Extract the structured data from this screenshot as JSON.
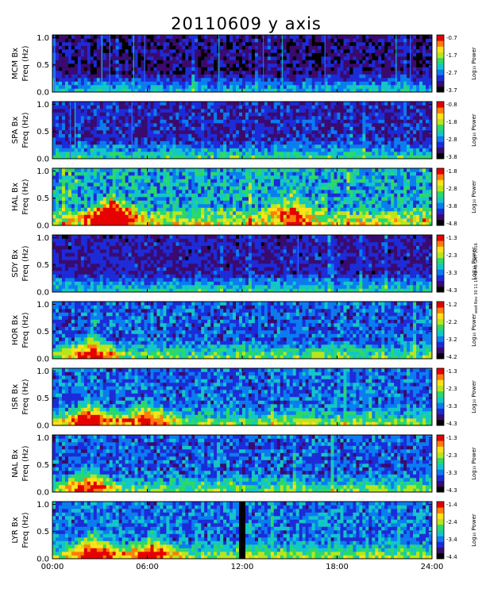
{
  "title": "20110609 y axis",
  "stamp": "wed Nov 30 11 16:40:48 GMT 2016",
  "colorbar_label": "Log₁₀ Power",
  "chart_data": {
    "type": "heatmap",
    "title": "20110609 y axis",
    "xlim": [
      0,
      24
    ],
    "x_ticks": [
      "00:00",
      "06:00",
      "12:00",
      "18:00",
      "24:00"
    ],
    "y_ticks": [
      "0.0",
      "0.5",
      "1.0"
    ],
    "ylim": [
      0,
      1.05
    ],
    "colorbar_label": "Log₁₀ Power",
    "colormap": [
      "#000000",
      "#3a0a6e",
      "#1d2bd8",
      "#0a7cf0",
      "#13c6c8",
      "#2bd86a",
      "#b8e61c",
      "#ffe119",
      "#ff7d0a",
      "#e60000"
    ],
    "panels": [
      {
        "station": "MCM Bx",
        "ylabel": "Freq (Hz)",
        "cbar_ticks": [
          "-0.7",
          "-1.7",
          "-2.7",
          "-3.7"
        ],
        "spikes_h": [
          0.1,
          3.1,
          3.6,
          5.1,
          5.8,
          10.5,
          13.3,
          14.5,
          17.2,
          21.7,
          22.6
        ],
        "blobs": [
          {
            "x": 20.5,
            "f": 0.15,
            "r": 0.05
          }
        ],
        "base": 0.15,
        "noise": 0.35
      },
      {
        "station": "SPA Bx",
        "ylabel": "Freq (Hz)",
        "cbar_ticks": [
          "-0.8",
          "-1.8",
          "-2.8",
          "-3.8"
        ],
        "spikes_h": [
          1.1,
          1.4,
          5.0
        ],
        "blobs": [],
        "base": 0.22,
        "noise": 0.4
      },
      {
        "station": "HAL Bx",
        "ylabel": "Freq (Hz)",
        "cbar_ticks": [
          "-1.8",
          "-2.8",
          "-3.8",
          "-4.8"
        ],
        "spikes_h": [],
        "blobs": [
          {
            "x": 3.8,
            "f": 0.15,
            "r": 0.9
          },
          {
            "x": 15.2,
            "f": 0.25,
            "r": 0.4
          }
        ],
        "base": 0.42,
        "noise": 0.6
      },
      {
        "station": "SDY Bx",
        "ylabel": "Freq (Hz)",
        "cbar_ticks": [
          "-1.3",
          "-2.3",
          "-3.3",
          "-4.3"
        ],
        "spikes_h": [
          15.5
        ],
        "blobs": [],
        "base": 0.2,
        "noise": 0.35
      },
      {
        "station": "HOR Bx",
        "ylabel": "Freq (Hz)",
        "cbar_ticks": [
          "-1.2",
          "-2.2",
          "-3.2",
          "-4.2"
        ],
        "spikes_h": [],
        "blobs": [
          {
            "x": 2.5,
            "f": 0.1,
            "r": 0.5
          }
        ],
        "base": 0.3,
        "noise": 0.45
      },
      {
        "station": "ISR Bx",
        "ylabel": "Freq (Hz)",
        "cbar_ticks": [
          "-1.3",
          "-2.3",
          "-3.3",
          "-4.3"
        ],
        "spikes_h": [],
        "blobs": [
          {
            "x": 2.4,
            "f": 0.1,
            "r": 0.6
          },
          {
            "x": 6.0,
            "f": 0.1,
            "r": 0.5
          }
        ],
        "base": 0.32,
        "noise": 0.45
      },
      {
        "station": "NAL Bx",
        "ylabel": "Freq (Hz)",
        "cbar_ticks": [
          "-1.3",
          "-2.3",
          "-3.3",
          "-4.3"
        ],
        "spikes_h": [],
        "blobs": [
          {
            "x": 2.3,
            "f": 0.1,
            "r": 0.5
          }
        ],
        "base": 0.3,
        "noise": 0.45
      },
      {
        "station": "LYR Bx",
        "ylabel": "Freq (Hz)",
        "cbar_ticks": [
          "-1.4",
          "-2.4",
          "-3.4",
          "-4.4"
        ],
        "spikes_h": [],
        "blobs": [
          {
            "x": 2.6,
            "f": 0.1,
            "r": 0.6
          },
          {
            "x": 6.3,
            "f": 0.1,
            "r": 0.5
          }
        ],
        "gap": [
          11.8,
          12.05
        ],
        "base": 0.33,
        "noise": 0.45
      }
    ]
  }
}
